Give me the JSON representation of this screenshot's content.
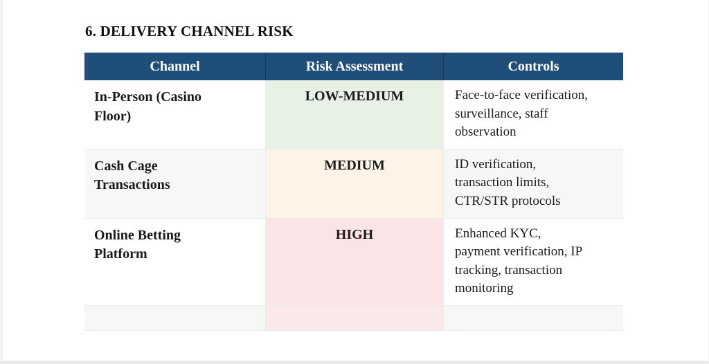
{
  "page": {
    "title": "6. DELIVERY CHANNEL RISK"
  },
  "colors": {
    "header_bg": "#1F4E79",
    "header_text": "#FFFFFF",
    "border": "#EAECED",
    "stripe_bg": "#F6F7F7",
    "white_bg": "#FFFFFF",
    "risk_low_medium_bg": "#E7F1E5",
    "risk_medium_bg": "#FDF3E6",
    "risk_high_bg": "#FBE4E5",
    "risk_empty_bg": "#FBE9EA"
  },
  "table": {
    "headers": [
      "Channel",
      "Risk Assessment",
      "Controls"
    ],
    "rows": [
      {
        "channel": "In-Person (Casino\nFloor)",
        "risk": "LOW-MEDIUM",
        "controls": "Face-to-face verification,\nsurveillance, staff\nobservation",
        "row_bg": "#FFFFFF",
        "risk_bg": "#E7F1E5"
      },
      {
        "channel": "Cash Cage\nTransactions",
        "risk": "MEDIUM",
        "controls": "ID verification,\ntransaction limits,\nCTR/STR protocols",
        "row_bg": "#F6F7F7",
        "risk_bg": "#FDF3E6"
      },
      {
        "channel": "Online Betting\nPlatform",
        "risk": "HIGH",
        "controls": "Enhanced KYC,\npayment verification, IP\ntracking, transaction\nmonitoring",
        "row_bg": "#FFFFFF",
        "risk_bg": "#FBE4E5"
      },
      {
        "channel": "",
        "risk": "",
        "controls": "",
        "row_bg": "#F6F7F7",
        "risk_bg": "#FBE9EA"
      }
    ]
  }
}
